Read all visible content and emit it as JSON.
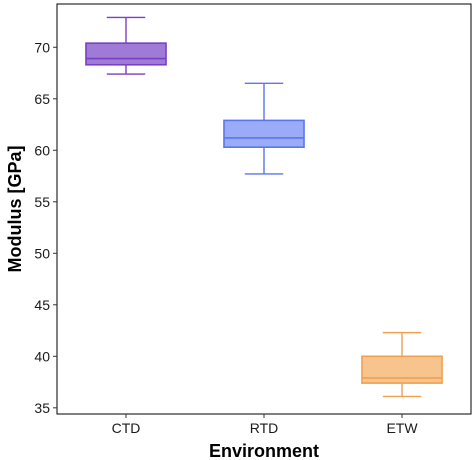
{
  "chart_data": {
    "type": "box",
    "title": "",
    "xlabel": "Environment",
    "ylabel": "Modulus [GPa]",
    "ylim": [
      34.4,
      74.2
    ],
    "yticks": [
      35,
      40,
      45,
      50,
      55,
      60,
      65,
      70
    ],
    "categories": [
      "CTD",
      "RTD",
      "ETW"
    ],
    "boxes": [
      {
        "category": "CTD",
        "min": 67.4,
        "q1": 68.3,
        "median": 68.9,
        "q3": 70.4,
        "max": 72.9,
        "color": "#7b3fc4",
        "fill": "#9f7ad6"
      },
      {
        "category": "RTD",
        "min": 57.7,
        "q1": 60.3,
        "median": 61.2,
        "q3": 62.9,
        "max": 66.5,
        "color": "#5a76f0",
        "fill": "#9aacf7"
      },
      {
        "category": "ETW",
        "min": 36.1,
        "q1": 37.4,
        "median": 37.9,
        "q3": 40.0,
        "max": 42.3,
        "color": "#f0a050",
        "fill": "#f8c48e"
      }
    ],
    "grid": false,
    "legend": "none"
  }
}
